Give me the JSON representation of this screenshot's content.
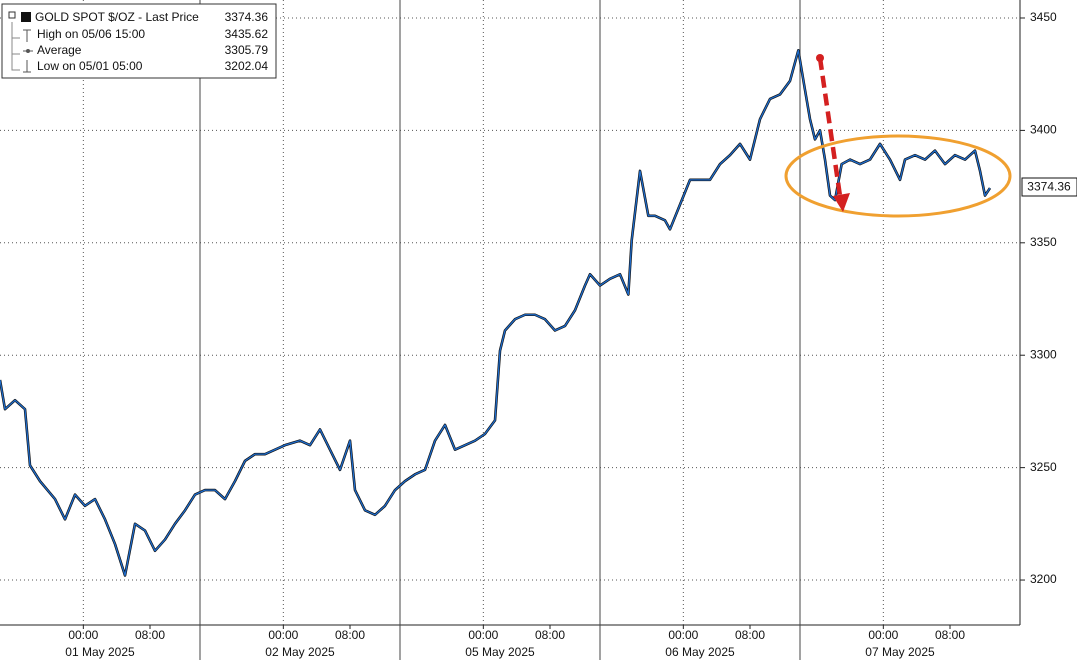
{
  "chart_data": {
    "type": "line",
    "series": [
      {
        "name": "GOLD SPOT $/OZ - Last Price",
        "color": "#1e6ccc",
        "values": [
          3289,
          3276,
          3280,
          3276,
          3251,
          3244,
          3236,
          3227,
          3238,
          3233,
          3236,
          3227,
          3216,
          3202.04,
          3225,
          3222,
          3213,
          3218,
          3225,
          3231,
          3238,
          3240,
          3240,
          3236,
          3244,
          3253,
          3256,
          3256,
          3258,
          3260,
          3262,
          3260,
          3267,
          3258,
          3249,
          3262,
          3240,
          3231,
          3229,
          3233,
          3240,
          3244,
          3247,
          3249,
          3262,
          3269,
          3258,
          3260,
          3262,
          3265,
          3271,
          3302,
          3311,
          3316,
          3318,
          3318,
          3316,
          3311,
          3313,
          3320,
          3331,
          3336,
          3331,
          3334,
          3336,
          3327,
          3351,
          3382,
          3362,
          3362,
          3360,
          3356,
          3367,
          3378,
          3378,
          3378,
          3385,
          3389,
          3394,
          3387,
          3405,
          3414,
          3416,
          3422,
          3435.62,
          3418,
          3405,
          3396,
          3400,
          3387,
          3371,
          3369,
          3385,
          3387,
          3385,
          3387,
          3394,
          3387,
          3378,
          3387,
          3389,
          3387,
          3391,
          3385,
          3389,
          3387,
          3391,
          3382,
          3371,
          3374.36
        ]
      }
    ],
    "x": [
      0,
      0.6,
      1.8,
      3,
      3.6,
      4.8,
      6.6,
      7.8,
      9,
      10.2,
      11.4,
      12.6,
      13.8,
      15,
      16.2,
      17.4,
      18.6,
      19.8,
      21,
      22.2,
      23.4,
      24.6,
      25.8,
      27,
      28.2,
      29.4,
      30.6,
      31.8,
      33,
      34.2,
      36,
      37.2,
      38.4,
      39.6,
      40.8,
      42,
      42.6,
      43.8,
      45,
      46.2,
      47.4,
      48.6,
      49.8,
      51,
      52.2,
      53.4,
      54.6,
      55.8,
      57,
      58.2,
      59.4,
      60,
      60.6,
      61.8,
      63,
      64.2,
      65.4,
      66.6,
      67.8,
      69,
      70.2,
      70.8,
      72,
      73.2,
      74.4,
      75.4,
      75.8,
      76.8,
      77.8,
      78.6,
      79.8,
      80.4,
      81.6,
      82.8,
      84,
      85.2,
      86.4,
      87.6,
      88.8,
      90,
      91.2,
      92.4,
      93.6,
      94.8,
      95.8,
      96.6,
      97.2,
      97.8,
      98.4,
      99,
      99.6,
      100.2,
      101,
      102,
      103.2,
      104.4,
      105.6,
      106.8,
      108,
      108.6,
      109.8,
      111,
      112.2,
      113.4,
      114.6,
      115.8,
      117,
      117.6,
      118.2,
      118.8
    ],
    "xlim": [
      0,
      122.4
    ],
    "xticks": [
      {
        "value": 10,
        "label": "00:00"
      },
      {
        "value": 18,
        "label": "08:00"
      },
      {
        "value": 34,
        "label": "00:00"
      },
      {
        "value": 42,
        "label": "08:00"
      },
      {
        "value": 58,
        "label": "00:00"
      },
      {
        "value": 66,
        "label": "08:00"
      },
      {
        "value": 82,
        "label": "00:00"
      },
      {
        "value": 90,
        "label": "08:00"
      },
      {
        "value": 106,
        "label": "00:00"
      },
      {
        "value": 114,
        "label": "08:00"
      }
    ],
    "xdates": [
      {
        "value": 12,
        "label": "01 May 2025"
      },
      {
        "value": 36,
        "label": "02 May 2025"
      },
      {
        "value": 60,
        "label": "05 May 2025"
      },
      {
        "value": 84,
        "label": "06 May 2025"
      },
      {
        "value": 108,
        "label": "07 May 2025"
      }
    ],
    "xseparators": [
      24,
      48,
      72,
      96
    ],
    "ylim": [
      3180,
      3458
    ],
    "yticks": [
      3200,
      3250,
      3300,
      3350,
      3400,
      3450
    ],
    "y_axis_side": "right",
    "grid": true,
    "legend_corner": "top-left",
    "last_price": 3374.36,
    "legend": [
      {
        "label": "High on 05/06 15:00",
        "value": 3435.62
      },
      {
        "label": "Average",
        "value": 3305.79
      },
      {
        "label": "Low on 05/01 05:00",
        "value": 3202.04
      }
    ]
  }
}
